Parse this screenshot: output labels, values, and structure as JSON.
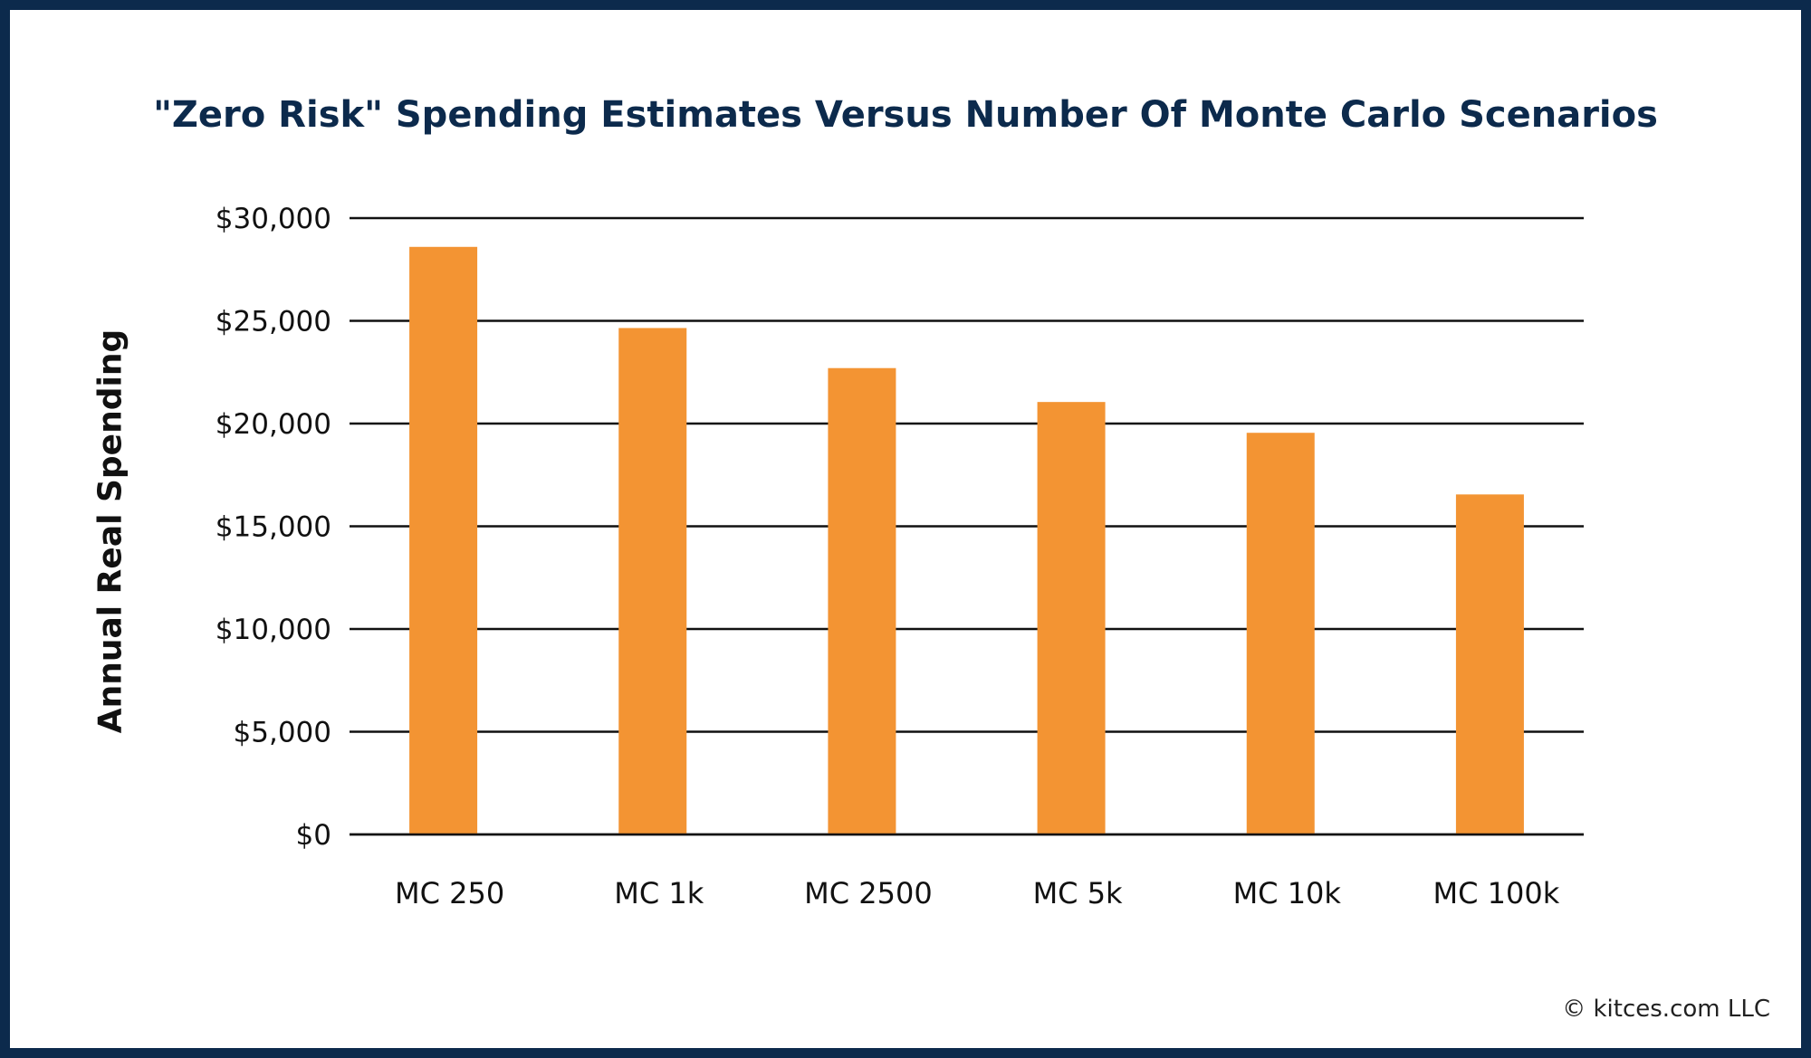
{
  "chart_data": {
    "type": "bar",
    "title": "\"Zero Risk\" Spending Estimates Versus Number Of Monte Carlo Scenarios",
    "xlabel": "",
    "ylabel": "Annual Real Spending",
    "categories": [
      "MC 250",
      "MC 1k",
      "MC 2500",
      "MC 5k",
      "MC 10k",
      "MC 100k"
    ],
    "values": [
      28600,
      24650,
      22700,
      21050,
      19550,
      16550
    ],
    "ylim": [
      0,
      30000
    ],
    "yticks": [
      0,
      5000,
      10000,
      15000,
      20000,
      25000,
      30000
    ],
    "ytick_labels": [
      "$0",
      "$5,000",
      "$10,000",
      "$15,000",
      "$20,000",
      "$25,000",
      "$30,000"
    ],
    "grid": true,
    "legend": "none",
    "bar_color": "#f39433"
  },
  "footer": {
    "copyright": "© kitces.com LLC"
  },
  "colors": {
    "frame": "#0c2a4c",
    "title": "#0c2a4c"
  }
}
